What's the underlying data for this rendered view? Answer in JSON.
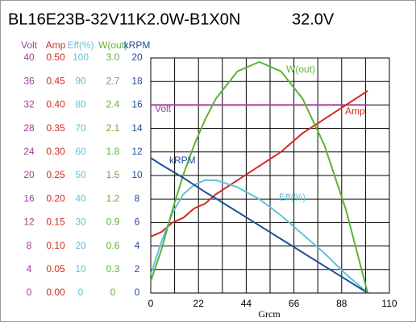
{
  "chart_data": {
    "type": "line",
    "title": "BL16E23B-32V11K2.0W-B1X0N",
    "subtitle": "32.0V",
    "x_label": "Grcm",
    "x": [
      0,
      5,
      10,
      15,
      20,
      25,
      30,
      40,
      50,
      60,
      70,
      80,
      90,
      100
    ],
    "xlim": [
      0,
      110
    ],
    "xticks": [
      0,
      22,
      44,
      66,
      88,
      110
    ],
    "grid": true,
    "series": [
      {
        "name": "Volt",
        "color": "#a0409a",
        "ylim": [
          0,
          40
        ],
        "yticks": [
          0,
          4,
          8,
          12,
          16,
          20,
          24,
          28,
          32,
          36,
          40
        ],
        "values": [
          32,
          32,
          32,
          32,
          32,
          32,
          32,
          32,
          32,
          32,
          32,
          32,
          32,
          32
        ]
      },
      {
        "name": "Amp",
        "color": "#d42a22",
        "ylim": [
          0,
          0.5
        ],
        "yticks": [
          {
            "value": 0,
            "label": "0.00"
          },
          {
            "value": 0.05,
            "label": "0.05"
          },
          {
            "value": 0.1,
            "label": "0.10"
          },
          {
            "value": 0.15,
            "label": "0.15"
          },
          {
            "value": 0.2,
            "label": "0.20"
          },
          {
            "value": 0.25,
            "label": "0.25"
          },
          {
            "value": 0.3,
            "label": "0.30"
          },
          {
            "value": 0.35,
            "label": "0.35"
          },
          {
            "value": 0.4,
            "label": "0.40"
          },
          {
            "value": 0.45,
            "label": "0.45"
          },
          {
            "value": 0.5,
            "label": "0.50"
          }
        ],
        "values": [
          0.12,
          0.13,
          0.15,
          0.16,
          0.18,
          0.19,
          0.21,
          0.24,
          0.27,
          0.3,
          0.34,
          0.37,
          0.4,
          0.43
        ]
      },
      {
        "name": "Eff(%)",
        "color": "#62c2d8",
        "ylim": [
          0,
          100
        ],
        "yticks": [
          0,
          10,
          20,
          30,
          40,
          50,
          60,
          70,
          80,
          90,
          100
        ],
        "values": [
          8,
          22,
          34,
          42,
          46,
          48,
          48,
          45,
          40,
          33,
          25,
          17,
          8,
          0
        ]
      },
      {
        "name": "W(out)",
        "color": "#5eb234",
        "ylim": [
          0,
          3
        ],
        "yticks": [
          0,
          0.3,
          0.6,
          0.9,
          1.2,
          1.5,
          1.8,
          2.1,
          2.4,
          2.7,
          {
            "value": 3,
            "label": "3.0"
          }
        ],
        "values": [
          0.15,
          0.56,
          1.06,
          1.51,
          1.89,
          2.21,
          2.48,
          2.83,
          2.95,
          2.83,
          2.48,
          1.89,
          1.06,
          0
        ]
      },
      {
        "name": "kRPM",
        "color": "#1f4e9a",
        "ylim": [
          0,
          20
        ],
        "yticks": [
          0,
          2,
          4,
          6,
          8,
          10,
          12,
          14,
          16,
          18,
          20
        ],
        "values": [
          11.5,
          10.9,
          10.35,
          9.8,
          9.2,
          8.6,
          8.05,
          6.9,
          5.75,
          4.6,
          3.45,
          2.3,
          1.15,
          0
        ]
      }
    ]
  }
}
